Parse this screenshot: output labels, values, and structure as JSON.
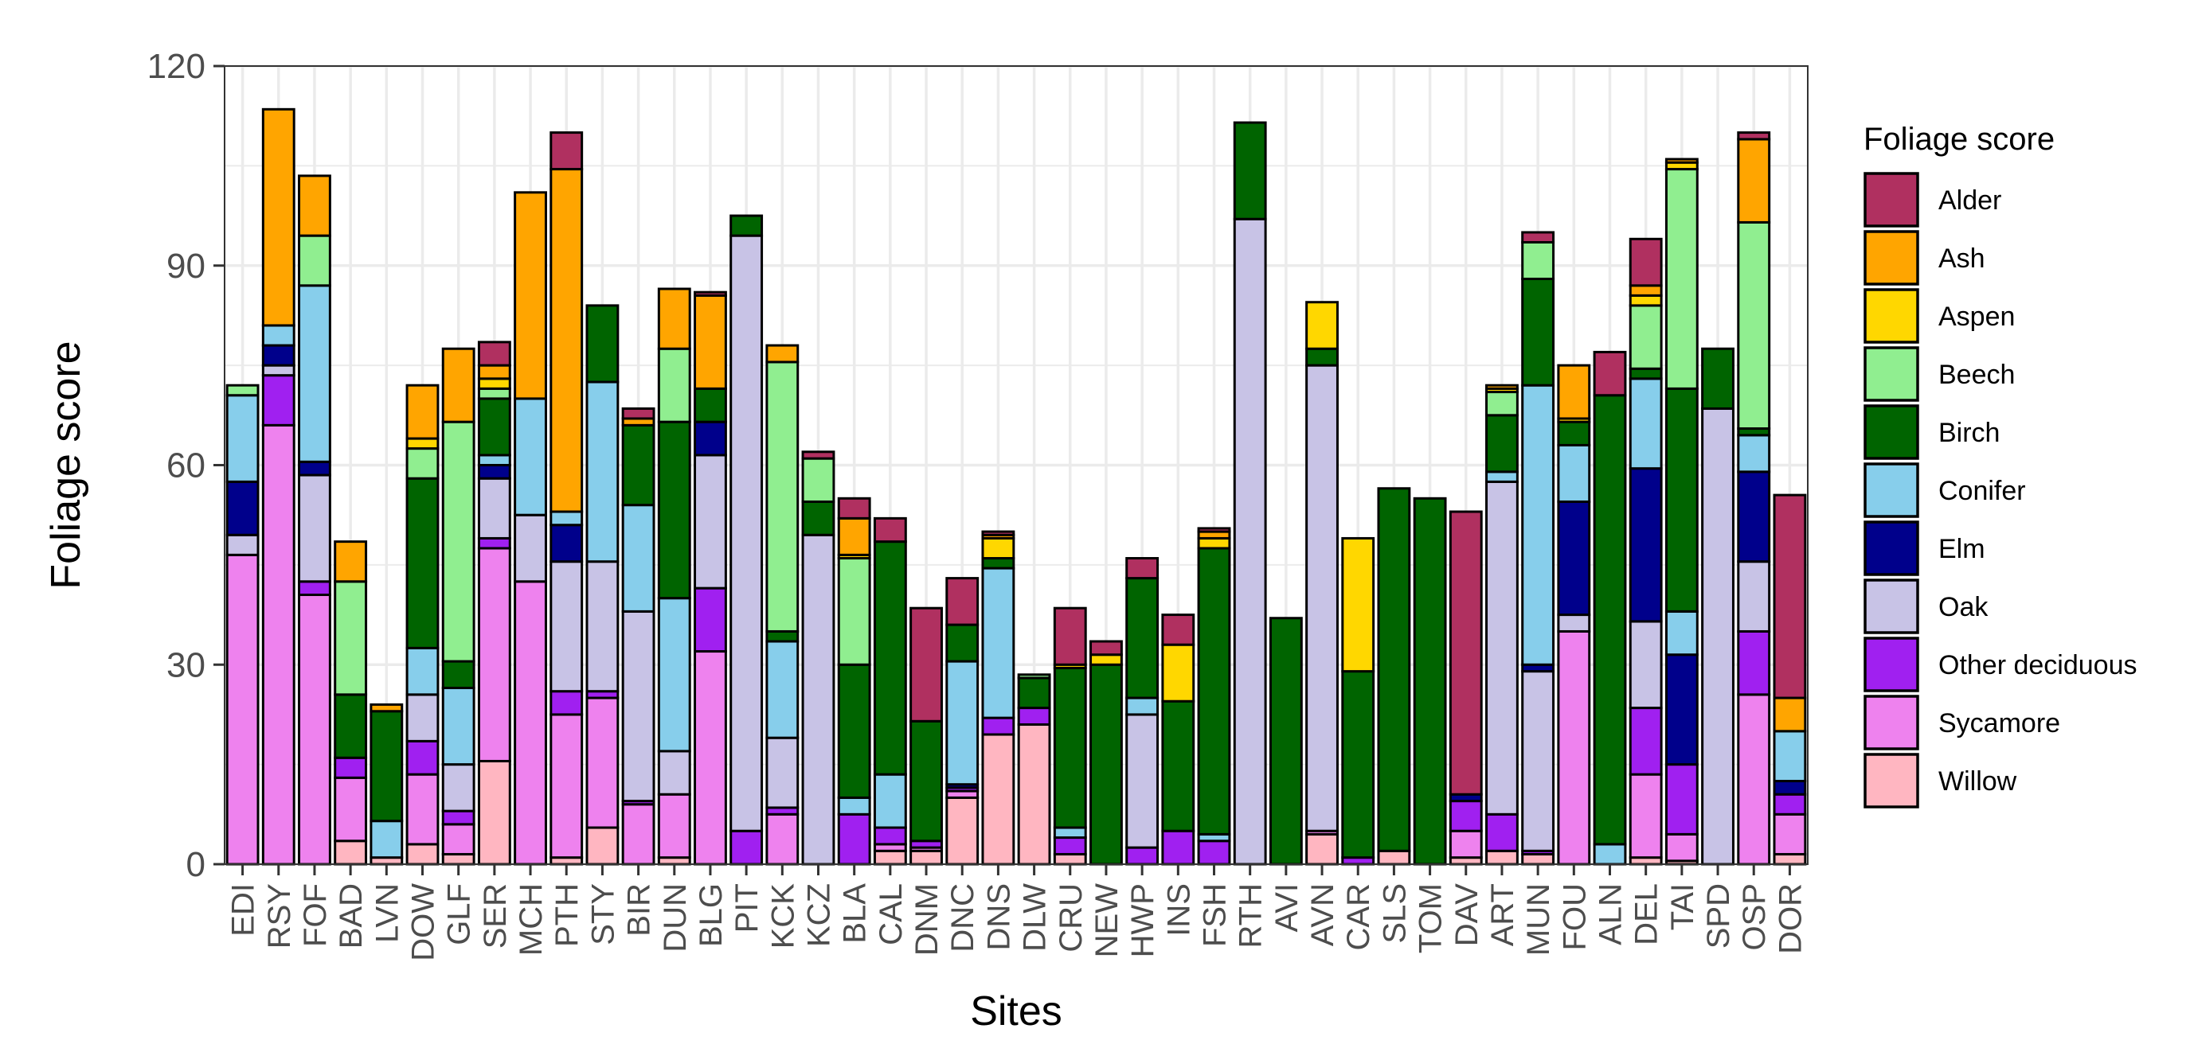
{
  "chart_data": {
    "type": "bar",
    "stacked": true,
    "title": "",
    "xlabel": "Sites",
    "ylabel": "Foliage score",
    "ylim": [
      0,
      120
    ],
    "yticks": [
      0,
      30,
      60,
      90,
      120
    ],
    "grid": true,
    "legend_position": "right",
    "legend_title": "Foliage score",
    "categories": [
      "EDI",
      "RSY",
      "FOF",
      "BAD",
      "LVN",
      "DOW",
      "GLF",
      "SER",
      "MCH",
      "PTH",
      "STY",
      "BIR",
      "DUN",
      "BLG",
      "PIT",
      "KCK",
      "KCZ",
      "BLA",
      "CAL",
      "DNM",
      "DNC",
      "DNS",
      "DLW",
      "CRU",
      "NEW",
      "HWP",
      "INS",
      "FSH",
      "RTH",
      "AVI",
      "AVN",
      "CAR",
      "SLS",
      "TOM",
      "DAV",
      "ART",
      "MUN",
      "FOU",
      "ALN",
      "DEL",
      "TAI",
      "SPD",
      "OSP",
      "DOR"
    ],
    "series": [
      {
        "name": "Willow",
        "color": "#FFB6C1",
        "values": [
          0,
          0,
          0,
          3.5,
          1,
          3,
          1.5,
          15.5,
          0,
          1,
          5.5,
          0,
          1,
          0,
          0,
          0,
          0,
          0,
          2,
          2,
          10,
          19.5,
          21,
          1.5,
          0,
          0,
          0,
          0,
          0,
          0,
          4.5,
          0,
          2,
          0,
          1,
          2,
          1.5,
          0,
          0,
          1,
          0.5,
          0,
          0,
          1.5
        ]
      },
      {
        "name": "Sycamore",
        "color": "#EE82EE",
        "values": [
          46.5,
          66,
          40.5,
          9.5,
          0,
          10.5,
          4.5,
          32,
          42.5,
          21.5,
          19.5,
          9,
          9.5,
          32,
          0,
          7.5,
          0,
          0,
          1,
          0.5,
          1,
          0,
          0,
          0,
          0,
          0,
          0,
          0,
          0,
          0,
          0.5,
          0,
          0,
          0,
          4,
          0,
          0,
          35,
          0,
          12.5,
          4,
          0,
          25.5,
          6
        ]
      },
      {
        "name": "Other deciduous",
        "color": "#A020F0",
        "values": [
          0,
          7.5,
          2,
          3,
          0,
          5,
          2,
          1.5,
          0,
          3.5,
          1,
          0.5,
          0,
          9.5,
          5,
          1,
          0,
          7.5,
          2.5,
          1,
          0.5,
          2.5,
          2.5,
          2.5,
          0,
          2.5,
          5,
          3.5,
          0,
          0,
          0,
          1,
          0,
          0,
          4.5,
          5.5,
          0.5,
          0,
          0,
          10,
          10.5,
          0,
          9.5,
          3
        ]
      },
      {
        "name": "Oak",
        "color": "#C8C3E6",
        "values": [
          3,
          1.5,
          16,
          0,
          0,
          7,
          7,
          9,
          10,
          19.5,
          19.5,
          28.5,
          6.5,
          20,
          89.5,
          10.5,
          49.5,
          0,
          0,
          0,
          0,
          0,
          0,
          0,
          0,
          20,
          0,
          0,
          97,
          0,
          70,
          0,
          0,
          0,
          0,
          50,
          27,
          2.5,
          0,
          13,
          0,
          68.5,
          10.5,
          0
        ]
      },
      {
        "name": "Elm",
        "color": "#00008B",
        "values": [
          8,
          3,
          2,
          0,
          0,
          0,
          0,
          2,
          0,
          5.5,
          0,
          0,
          0,
          5,
          0,
          0,
          0,
          0,
          0,
          0,
          0.5,
          0,
          0,
          0,
          0,
          0,
          0,
          0,
          0,
          0,
          0,
          0,
          0,
          0,
          1,
          0,
          1,
          17,
          0,
          23,
          16.5,
          0,
          13.5,
          2
        ]
      },
      {
        "name": "Conifer",
        "color": "#87CEEB",
        "values": [
          13,
          3,
          26.5,
          0,
          5.5,
          7,
          11.5,
          1.5,
          17.5,
          2,
          27,
          16,
          23,
          0,
          0,
          14.5,
          0,
          2.5,
          8,
          0,
          18.5,
          22.5,
          0,
          1.5,
          0,
          2.5,
          0,
          1,
          0,
          0,
          0,
          0,
          0,
          0,
          0,
          1.5,
          42,
          8.5,
          3,
          13.5,
          6.5,
          0,
          5.5,
          7.5
        ]
      },
      {
        "name": "Birch",
        "color": "#006400",
        "values": [
          0,
          0,
          0,
          9.5,
          16.5,
          25.5,
          4,
          8.5,
          0,
          0,
          11.5,
          12,
          26.5,
          5,
          3,
          1.5,
          5,
          20,
          35,
          18,
          5.5,
          1.5,
          4.5,
          24,
          30,
          18,
          19.5,
          43,
          14.5,
          37,
          2.5,
          28,
          54.5,
          55,
          0,
          8.5,
          16,
          3.5,
          67.5,
          1.5,
          33.5,
          9,
          1,
          0
        ]
      },
      {
        "name": "Beech",
        "color": "#90EE90",
        "values": [
          1.5,
          0,
          7.5,
          17,
          0,
          4.5,
          36,
          1.5,
          0,
          0,
          0,
          0,
          11,
          0,
          0,
          40.5,
          6.5,
          16,
          0,
          0,
          0,
          0,
          0.5,
          0,
          0,
          0,
          0,
          0,
          0,
          0,
          0,
          0,
          0,
          0,
          0,
          3.5,
          5.5,
          0,
          0,
          9.5,
          33,
          0,
          31,
          0
        ]
      },
      {
        "name": "Aspen",
        "color": "#FFD700",
        "values": [
          0,
          0,
          0,
          0,
          0,
          1.5,
          0,
          1.5,
          0,
          0,
          0,
          0,
          0,
          0,
          0,
          0,
          0,
          0.5,
          0,
          0,
          0,
          3,
          0,
          0.5,
          1.5,
          0,
          8.5,
          1.5,
          0,
          0,
          7,
          20,
          0,
          0,
          0,
          0.5,
          0,
          0.5,
          0,
          1.5,
          1,
          0,
          0,
          0
        ]
      },
      {
        "name": "Ash",
        "color": "#FFA500",
        "values": [
          0,
          32.5,
          9,
          6,
          1,
          8,
          11,
          2,
          31,
          51.5,
          0,
          1,
          9,
          14,
          0,
          2.5,
          0,
          5.5,
          0,
          0,
          0,
          0.5,
          0,
          0,
          0,
          0,
          0,
          1,
          0,
          0,
          0,
          0,
          0,
          0,
          0,
          0.5,
          0,
          8,
          0,
          1.5,
          0.5,
          0,
          12.5,
          5
        ]
      },
      {
        "name": "Alder",
        "color": "#B03060",
        "values": [
          0,
          0,
          0,
          0,
          0,
          0,
          0,
          3.5,
          0,
          5.5,
          0,
          1.5,
          0,
          0.5,
          0,
          0,
          1,
          3,
          3.5,
          17,
          7,
          0.5,
          0,
          8.5,
          2,
          3,
          4.5,
          0.5,
          0,
          0,
          0,
          0,
          0,
          0,
          42.5,
          0,
          1.5,
          0,
          6.5,
          7,
          0,
          0,
          1,
          30.5
        ]
      }
    ]
  }
}
